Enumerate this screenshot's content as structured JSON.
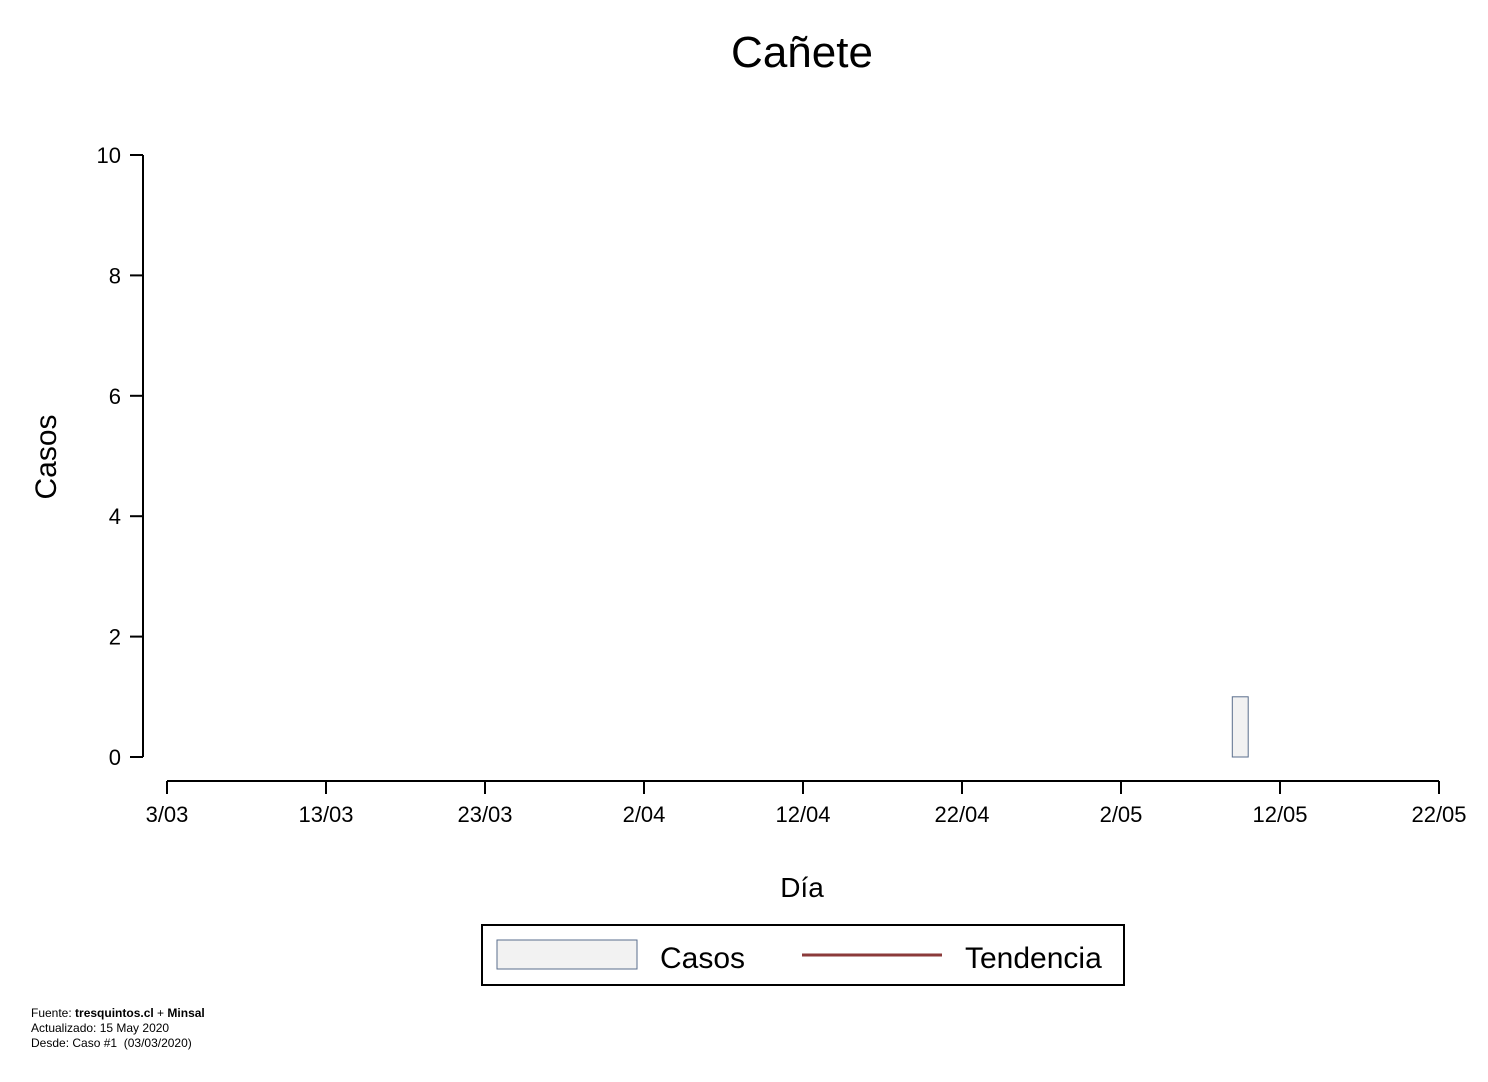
{
  "chart_data": {
    "type": "bar",
    "title": "Cañete",
    "xlabel": "Día",
    "ylabel": "Casos",
    "ylim": [
      0,
      10
    ],
    "yticks": [
      0,
      2,
      4,
      6,
      8,
      10
    ],
    "x_range": [
      "2020-03-03",
      "2020-05-22"
    ],
    "xticks": [
      {
        "date": "2020-03-03",
        "label": "3/03"
      },
      {
        "date": "2020-03-13",
        "label": "13/03"
      },
      {
        "date": "2020-03-23",
        "label": "23/03"
      },
      {
        "date": "2020-04-02",
        "label": "2/04"
      },
      {
        "date": "2020-04-12",
        "label": "12/04"
      },
      {
        "date": "2020-04-22",
        "label": "22/04"
      },
      {
        "date": "2020-05-02",
        "label": "2/05"
      },
      {
        "date": "2020-05-12",
        "label": "12/05"
      },
      {
        "date": "2020-05-22",
        "label": "22/05"
      }
    ],
    "series": [
      {
        "name": "Casos",
        "type": "bar",
        "color": "#f2f2f2",
        "edge_color": "#5a6e8c",
        "points": [
          {
            "date": "2020-05-09",
            "value": 1
          }
        ]
      },
      {
        "name": "Tendencia",
        "type": "line",
        "color": "#8b3a3a",
        "points": []
      }
    ],
    "legend": {
      "position": "bottom-center",
      "entries": [
        "Casos",
        "Tendencia"
      ]
    }
  },
  "footer": {
    "source_prefix": "Fuente: ",
    "source_name_1": "tresquintos.cl",
    "source_joiner": " + ",
    "source_name_2": "Minsal",
    "updated": "Actualizado: 15 May 2020",
    "since": "Desde: Caso #1  (03/03/2020)"
  }
}
